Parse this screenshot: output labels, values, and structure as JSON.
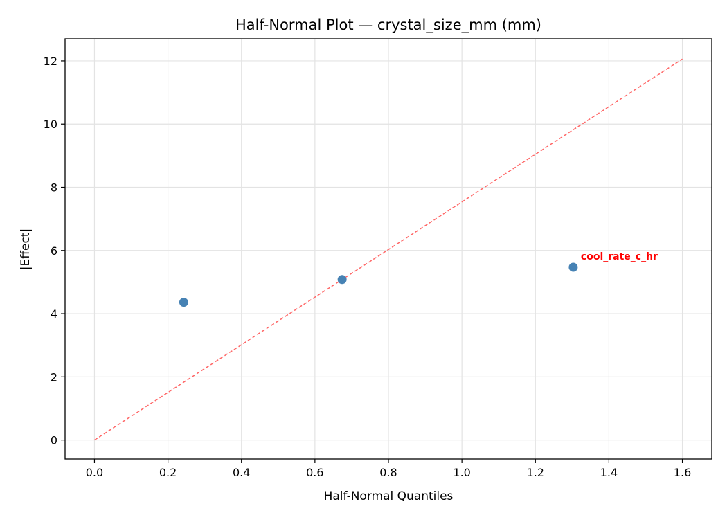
{
  "chart_data": {
    "type": "scatter",
    "title": "Half-Normal Plot — crystal_size_mm (mm)",
    "xlabel": "Half-Normal Quantiles",
    "ylabel": "|Effect|",
    "xlim": [
      -0.08,
      1.68
    ],
    "ylim": [
      -0.6,
      12.7
    ],
    "xticks": [
      0.0,
      0.2,
      0.4,
      0.6,
      0.8,
      1.0,
      1.2,
      1.4,
      1.6
    ],
    "xtick_labels": [
      "0.0",
      "0.2",
      "0.4",
      "0.6",
      "0.8",
      "1.0",
      "1.2",
      "1.4",
      "1.6"
    ],
    "yticks": [
      0,
      2,
      4,
      6,
      8,
      10,
      12
    ],
    "ytick_labels": [
      "0",
      "2",
      "4",
      "6",
      "8",
      "10",
      "12"
    ],
    "grid": true,
    "points": [
      {
        "x": 0.243,
        "y": 4.36,
        "label": ""
      },
      {
        "x": 0.674,
        "y": 5.08,
        "label": ""
      },
      {
        "x": 1.303,
        "y": 5.47,
        "label": "cool_rate_c_hr"
      }
    ],
    "reference_line": {
      "x": [
        0,
        1.6
      ],
      "y": [
        0,
        12.06
      ]
    },
    "colors": {
      "points": "#4682b4",
      "reference_line": "#ff6666",
      "annotation": "#ff0000"
    }
  }
}
